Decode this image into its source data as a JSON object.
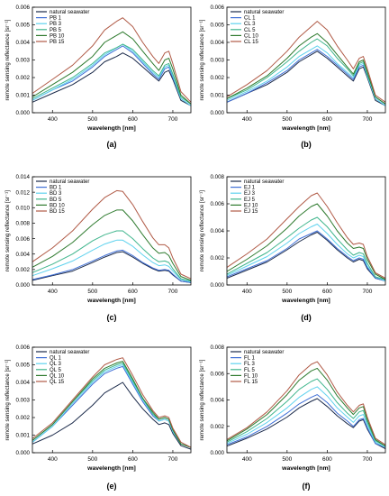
{
  "colors": {
    "series": [
      "#1b2a4a",
      "#3f6fd6",
      "#5fd2ee",
      "#3fb58c",
      "#2e7a2e",
      "#b05a46"
    ],
    "axis": "#000000"
  },
  "chart_data": [
    {
      "type": "line",
      "panel_label": "(a)",
      "xlabel": "wavelength [nm]",
      "ylabel": "remote sensing reflectance [sr⁻¹]",
      "xlim": [
        350,
        745
      ],
      "ylim": [
        0,
        0.006
      ],
      "xticks": [
        400,
        500,
        600,
        700
      ],
      "yticks": [
        0.0,
        0.001,
        0.002,
        0.003,
        0.004,
        0.005,
        0.006
      ],
      "ytick_labels": [
        "0.000",
        "0.001",
        "0.002",
        "0.003",
        "0.004",
        "0.005",
        "0.006"
      ],
      "legend_position": "top-left",
      "x": [
        350,
        400,
        450,
        500,
        530,
        560,
        575,
        600,
        625,
        650,
        665,
        680,
        690,
        700,
        720,
        745
      ],
      "series": [
        {
          "name": "natural seawater",
          "values": [
            0.0006,
            0.0011,
            0.0016,
            0.0023,
            0.0029,
            0.0032,
            0.0034,
            0.0031,
            0.0026,
            0.0021,
            0.0018,
            0.0023,
            0.0024,
            0.0019,
            0.0007,
            0.0004
          ]
        },
        {
          "name": "PB 1",
          "values": [
            0.0007,
            0.0013,
            0.0018,
            0.0026,
            0.0032,
            0.0036,
            0.0038,
            0.0034,
            0.0028,
            0.0022,
            0.0019,
            0.0025,
            0.0026,
            0.002,
            0.0008,
            0.0004
          ]
        },
        {
          "name": "PB 3",
          "values": [
            0.0007,
            0.0013,
            0.0019,
            0.0027,
            0.0033,
            0.0037,
            0.0039,
            0.0035,
            0.0029,
            0.0023,
            0.002,
            0.0026,
            0.0027,
            0.0021,
            0.0008,
            0.0004
          ]
        },
        {
          "name": "PB 5",
          "values": [
            0.0008,
            0.0014,
            0.002,
            0.0028,
            0.0034,
            0.0037,
            0.0039,
            0.0036,
            0.003,
            0.0024,
            0.0021,
            0.0027,
            0.0028,
            0.0022,
            0.0009,
            0.0005
          ]
        },
        {
          "name": "PB 10",
          "values": [
            0.0009,
            0.0016,
            0.0023,
            0.0032,
            0.004,
            0.0044,
            0.0046,
            0.0042,
            0.0035,
            0.0028,
            0.0024,
            0.003,
            0.0031,
            0.0025,
            0.001,
            0.0005
          ]
        },
        {
          "name": "PB 15",
          "values": [
            0.0011,
            0.0019,
            0.0027,
            0.0038,
            0.0047,
            0.0052,
            0.0054,
            0.0049,
            0.004,
            0.0032,
            0.0028,
            0.0034,
            0.0035,
            0.0028,
            0.0012,
            0.0006
          ]
        }
      ]
    },
    {
      "type": "line",
      "panel_label": "(b)",
      "xlabel": "wavelength [nm]",
      "ylabel": "remote sensing reflectance [sr⁻¹]",
      "xlim": [
        350,
        745
      ],
      "ylim": [
        0,
        0.006
      ],
      "xticks": [
        400,
        500,
        600,
        700
      ],
      "yticks": [
        0.0,
        0.001,
        0.002,
        0.003,
        0.004,
        0.005,
        0.006
      ],
      "ytick_labels": [
        "0.000",
        "0.001",
        "0.002",
        "0.003",
        "0.004",
        "0.005",
        "0.006"
      ],
      "legend_position": "top-left",
      "x": [
        350,
        400,
        450,
        500,
        530,
        560,
        575,
        600,
        625,
        650,
        665,
        680,
        690,
        700,
        720,
        745
      ],
      "series": [
        {
          "name": "natural seawater",
          "values": [
            0.0006,
            0.0011,
            0.0016,
            0.0023,
            0.0029,
            0.0033,
            0.0035,
            0.0031,
            0.0026,
            0.0021,
            0.0018,
            0.0025,
            0.0026,
            0.002,
            0.0007,
            0.0004
          ]
        },
        {
          "name": "CL 1",
          "values": [
            0.0006,
            0.0011,
            0.0017,
            0.0024,
            0.003,
            0.0034,
            0.0036,
            0.0032,
            0.0027,
            0.0022,
            0.0019,
            0.0026,
            0.0027,
            0.0021,
            0.0008,
            0.0004
          ]
        },
        {
          "name": "CL 3",
          "values": [
            0.0007,
            0.0012,
            0.0018,
            0.0026,
            0.0032,
            0.0036,
            0.0038,
            0.0034,
            0.0028,
            0.0023,
            0.002,
            0.0027,
            0.0028,
            0.0021,
            0.0008,
            0.0004
          ]
        },
        {
          "name": "CL 5",
          "values": [
            0.0008,
            0.0013,
            0.002,
            0.0029,
            0.0035,
            0.004,
            0.0042,
            0.0038,
            0.0031,
            0.0025,
            0.0021,
            0.0028,
            0.0029,
            0.0022,
            0.0009,
            0.0005
          ]
        },
        {
          "name": "CL 10",
          "values": [
            0.0008,
            0.0014,
            0.0021,
            0.0031,
            0.0038,
            0.0043,
            0.0045,
            0.004,
            0.0033,
            0.0026,
            0.0022,
            0.0029,
            0.003,
            0.0023,
            0.0009,
            0.0005
          ]
        },
        {
          "name": "CL 15",
          "values": [
            0.0009,
            0.0016,
            0.0024,
            0.0035,
            0.0043,
            0.0049,
            0.0052,
            0.0047,
            0.0038,
            0.003,
            0.0025,
            0.0031,
            0.0032,
            0.0025,
            0.001,
            0.0006
          ]
        }
      ]
    },
    {
      "type": "line",
      "panel_label": "(c)",
      "xlabel": "wavelength [nm]",
      "ylabel": "remote sensing reflectance [sr⁻¹]",
      "xlim": [
        350,
        745
      ],
      "ylim": [
        0,
        0.014
      ],
      "xticks": [
        400,
        500,
        600,
        700
      ],
      "yticks": [
        0.0,
        0.002,
        0.004,
        0.006,
        0.008,
        0.01,
        0.012,
        0.014
      ],
      "ytick_labels": [
        "0.000",
        "0.002",
        "0.004",
        "0.006",
        "0.008",
        "0.010",
        "0.012",
        "0.014"
      ],
      "legend_position": "top-left",
      "x": [
        350,
        400,
        450,
        500,
        530,
        560,
        575,
        600,
        625,
        650,
        665,
        680,
        690,
        700,
        720,
        745
      ],
      "series": [
        {
          "name": "natural seawater",
          "values": [
            0.0006,
            0.0012,
            0.0018,
            0.0029,
            0.0036,
            0.0042,
            0.0043,
            0.0036,
            0.0028,
            0.0021,
            0.0018,
            0.0019,
            0.0018,
            0.0013,
            0.0005,
            0.0003
          ]
        },
        {
          "name": "BD 1",
          "values": [
            0.0007,
            0.0013,
            0.002,
            0.0031,
            0.0038,
            0.0044,
            0.0045,
            0.0038,
            0.0029,
            0.0022,
            0.0019,
            0.002,
            0.0019,
            0.0014,
            0.0005,
            0.0003
          ]
        },
        {
          "name": "BD 3",
          "values": [
            0.0012,
            0.0021,
            0.0031,
            0.0045,
            0.0053,
            0.0058,
            0.0058,
            0.005,
            0.0039,
            0.0029,
            0.0025,
            0.0026,
            0.0024,
            0.0018,
            0.0007,
            0.0004
          ]
        },
        {
          "name": "BD 5",
          "values": [
            0.0016,
            0.0027,
            0.004,
            0.0057,
            0.0065,
            0.007,
            0.007,
            0.006,
            0.0047,
            0.0035,
            0.003,
            0.0031,
            0.0029,
            0.0021,
            0.0008,
            0.0005
          ]
        },
        {
          "name": "BD 10",
          "values": [
            0.0023,
            0.0037,
            0.0055,
            0.0078,
            0.009,
            0.0097,
            0.0097,
            0.0083,
            0.0065,
            0.0048,
            0.0041,
            0.0042,
            0.0038,
            0.0028,
            0.0011,
            0.0006
          ]
        },
        {
          "name": "BD 15",
          "values": [
            0.003,
            0.0048,
            0.007,
            0.0098,
            0.0113,
            0.0122,
            0.0121,
            0.0104,
            0.0082,
            0.0061,
            0.0052,
            0.0052,
            0.0048,
            0.0035,
            0.0014,
            0.0008
          ]
        }
      ]
    },
    {
      "type": "line",
      "panel_label": "(d)",
      "xlabel": "wavelength [nm]",
      "ylabel": "remote sensing reflectance [sr⁻¹]",
      "xlim": [
        350,
        745
      ],
      "ylim": [
        0,
        0.008
      ],
      "xticks": [
        400,
        500,
        600,
        700
      ],
      "yticks": [
        0.0,
        0.002,
        0.004,
        0.006,
        0.008
      ],
      "ytick_labels": [
        "0.000",
        "0.002",
        "0.004",
        "0.006",
        "0.008"
      ],
      "legend_position": "top-left",
      "x": [
        350,
        400,
        450,
        500,
        530,
        560,
        575,
        600,
        625,
        650,
        665,
        680,
        690,
        700,
        720,
        745
      ],
      "series": [
        {
          "name": "natural seawater",
          "values": [
            0.0005,
            0.0011,
            0.0017,
            0.0026,
            0.0032,
            0.0037,
            0.0039,
            0.0033,
            0.0026,
            0.002,
            0.0017,
            0.0019,
            0.0018,
            0.0012,
            0.0005,
            0.0003
          ]
        },
        {
          "name": "EJ 1",
          "values": [
            0.0006,
            0.0012,
            0.0018,
            0.0027,
            0.0034,
            0.0038,
            0.004,
            0.0034,
            0.0027,
            0.0021,
            0.0018,
            0.002,
            0.0019,
            0.0013,
            0.0005,
            0.0003
          ]
        },
        {
          "name": "EJ 3",
          "values": [
            0.0007,
            0.0014,
            0.0021,
            0.0031,
            0.0038,
            0.0043,
            0.0045,
            0.0038,
            0.003,
            0.0023,
            0.002,
            0.0022,
            0.0021,
            0.0014,
            0.0006,
            0.0003
          ]
        },
        {
          "name": "EJ 5",
          "values": [
            0.0008,
            0.0016,
            0.0024,
            0.0035,
            0.0042,
            0.0048,
            0.005,
            0.0043,
            0.0034,
            0.0026,
            0.0022,
            0.0024,
            0.0023,
            0.0016,
            0.0006,
            0.0004
          ]
        },
        {
          "name": "EJ 10",
          "values": [
            0.001,
            0.0019,
            0.0029,
            0.0042,
            0.0051,
            0.0058,
            0.006,
            0.0051,
            0.004,
            0.0031,
            0.0027,
            0.0028,
            0.0027,
            0.0019,
            0.0008,
            0.0004
          ]
        },
        {
          "name": "EJ 15",
          "values": [
            0.0013,
            0.0023,
            0.0034,
            0.0049,
            0.0058,
            0.0066,
            0.0068,
            0.0058,
            0.0046,
            0.0035,
            0.003,
            0.0031,
            0.003,
            0.0021,
            0.0009,
            0.0005
          ]
        }
      ]
    },
    {
      "type": "line",
      "panel_label": "(e)",
      "xlabel": "wavelength [nm]",
      "ylabel": "remote sensing reflectance [sr⁻¹]",
      "xlim": [
        350,
        745
      ],
      "ylim": [
        0,
        0.006
      ],
      "xticks": [
        400,
        500,
        600,
        700
      ],
      "yticks": [
        0.0,
        0.001,
        0.002,
        0.003,
        0.004,
        0.005,
        0.006
      ],
      "ytick_labels": [
        "0.000",
        "0.001",
        "0.002",
        "0.003",
        "0.004",
        "0.005",
        "0.006"
      ],
      "legend_position": "top-left",
      "x": [
        350,
        400,
        450,
        500,
        530,
        560,
        575,
        600,
        625,
        650,
        665,
        680,
        690,
        700,
        720,
        745
      ],
      "series": [
        {
          "name": "natural seawater",
          "values": [
            0.0005,
            0.001,
            0.0017,
            0.0027,
            0.0034,
            0.0038,
            0.004,
            0.0032,
            0.0025,
            0.0019,
            0.0016,
            0.0017,
            0.0016,
            0.0011,
            0.0004,
            0.0002
          ]
        },
        {
          "name": "QL 1",
          "values": [
            0.0006,
            0.0015,
            0.0027,
            0.0039,
            0.0045,
            0.0048,
            0.0049,
            0.0039,
            0.0029,
            0.0021,
            0.0018,
            0.0019,
            0.0018,
            0.0012,
            0.0005,
            0.0003
          ]
        },
        {
          "name": "QL 3",
          "values": [
            0.0006,
            0.0015,
            0.0028,
            0.004,
            0.0046,
            0.0049,
            0.005,
            0.004,
            0.003,
            0.0022,
            0.0018,
            0.0019,
            0.0018,
            0.0012,
            0.0005,
            0.0003
          ]
        },
        {
          "name": "QL 5",
          "values": [
            0.0007,
            0.0016,
            0.0029,
            0.0041,
            0.0047,
            0.005,
            0.0051,
            0.0041,
            0.0031,
            0.0022,
            0.0019,
            0.002,
            0.0019,
            0.0013,
            0.0005,
            0.0003
          ]
        },
        {
          "name": "QL 10",
          "values": [
            0.0007,
            0.0016,
            0.0029,
            0.0042,
            0.0048,
            0.0051,
            0.0052,
            0.0042,
            0.0031,
            0.0023,
            0.0019,
            0.002,
            0.0019,
            0.0013,
            0.0005,
            0.0003
          ]
        },
        {
          "name": "QL 15",
          "values": [
            0.0008,
            0.0017,
            0.003,
            0.0043,
            0.005,
            0.0053,
            0.0054,
            0.0044,
            0.0033,
            0.0024,
            0.002,
            0.0021,
            0.002,
            0.0014,
            0.0006,
            0.0003
          ]
        }
      ]
    },
    {
      "type": "line",
      "panel_label": "(f)",
      "xlabel": "wavelength [nm]",
      "ylabel": "remote sensing reflectance [sr⁻¹]",
      "xlim": [
        350,
        745
      ],
      "ylim": [
        0,
        0.008
      ],
      "xticks": [
        400,
        500,
        600,
        700
      ],
      "yticks": [
        0.0,
        0.002,
        0.004,
        0.006,
        0.008
      ],
      "ytick_labels": [
        "0.000",
        "0.002",
        "0.004",
        "0.006",
        "0.008"
      ],
      "legend_position": "top-left",
      "x": [
        350,
        400,
        450,
        500,
        530,
        560,
        575,
        600,
        625,
        650,
        665,
        680,
        690,
        700,
        720,
        745
      ],
      "series": [
        {
          "name": "natural seawater",
          "values": [
            0.0005,
            0.0011,
            0.0018,
            0.0027,
            0.0034,
            0.0039,
            0.0041,
            0.0035,
            0.0028,
            0.0022,
            0.0019,
            0.0024,
            0.0025,
            0.0018,
            0.0007,
            0.0003
          ]
        },
        {
          "name": "FL 1",
          "values": [
            0.0006,
            0.0012,
            0.002,
            0.003,
            0.0037,
            0.0042,
            0.0044,
            0.0038,
            0.003,
            0.0024,
            0.002,
            0.0025,
            0.0026,
            0.0019,
            0.0007,
            0.0004
          ]
        },
        {
          "name": "FL 3",
          "values": [
            0.0007,
            0.0014,
            0.0023,
            0.0034,
            0.0042,
            0.0048,
            0.005,
            0.0043,
            0.0034,
            0.0027,
            0.0023,
            0.0028,
            0.0029,
            0.0021,
            0.0008,
            0.0004
          ]
        },
        {
          "name": "FL 5",
          "values": [
            0.0008,
            0.0016,
            0.0026,
            0.0039,
            0.0048,
            0.0054,
            0.0056,
            0.0048,
            0.0038,
            0.003,
            0.0026,
            0.0031,
            0.0032,
            0.0023,
            0.0009,
            0.0005
          ]
        },
        {
          "name": "FL 10",
          "values": [
            0.0009,
            0.0018,
            0.0029,
            0.0044,
            0.0055,
            0.0062,
            0.0064,
            0.0055,
            0.0043,
            0.0034,
            0.0029,
            0.0034,
            0.0035,
            0.0025,
            0.001,
            0.0005
          ]
        },
        {
          "name": "FL 15",
          "values": [
            0.001,
            0.0019,
            0.0031,
            0.0047,
            0.0059,
            0.0067,
            0.0069,
            0.0059,
            0.0046,
            0.0036,
            0.0031,
            0.0036,
            0.0037,
            0.0027,
            0.0011,
            0.0006
          ]
        }
      ]
    }
  ]
}
